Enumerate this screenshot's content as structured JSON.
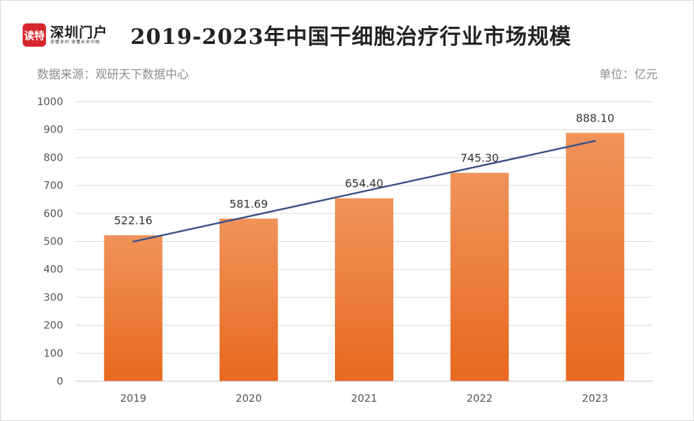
{
  "logo": {
    "badge": "读特",
    "name": "深圳门户",
    "tagline": "读懂深圳 读懂未来中国"
  },
  "header": {
    "title": "2019-2023年中国干细胞治疗行业市场规模",
    "source": "数据来源：观研天下数据中心",
    "unit": "单位：亿元"
  },
  "colors": {
    "bar_top": "#f0935a",
    "bar_bottom": "#e8681e",
    "trendline": "#3b5187",
    "grid": "#d9d9d9",
    "logo_red": "#d7262d"
  },
  "chart_data": {
    "type": "bar",
    "categories": [
      "2019",
      "2020",
      "2021",
      "2022",
      "2023"
    ],
    "values": [
      522.16,
      581.69,
      654.4,
      745.3,
      888.1
    ],
    "data_labels": [
      "522.16",
      "581.69",
      "654.40",
      "745.30",
      "888.10"
    ],
    "trendline": {
      "type": "linear",
      "values": [
        499.3,
        589.4,
        679.5,
        769.5,
        859.6
      ]
    },
    "ylim": [
      0,
      1000
    ],
    "yticks": [
      "0",
      "100",
      "200",
      "300",
      "400",
      "500",
      "600",
      "700",
      "800",
      "900",
      "1000"
    ],
    "grid": true,
    "legend": "none",
    "title": "2019-2023年中国干细胞治疗行业市场规模"
  }
}
